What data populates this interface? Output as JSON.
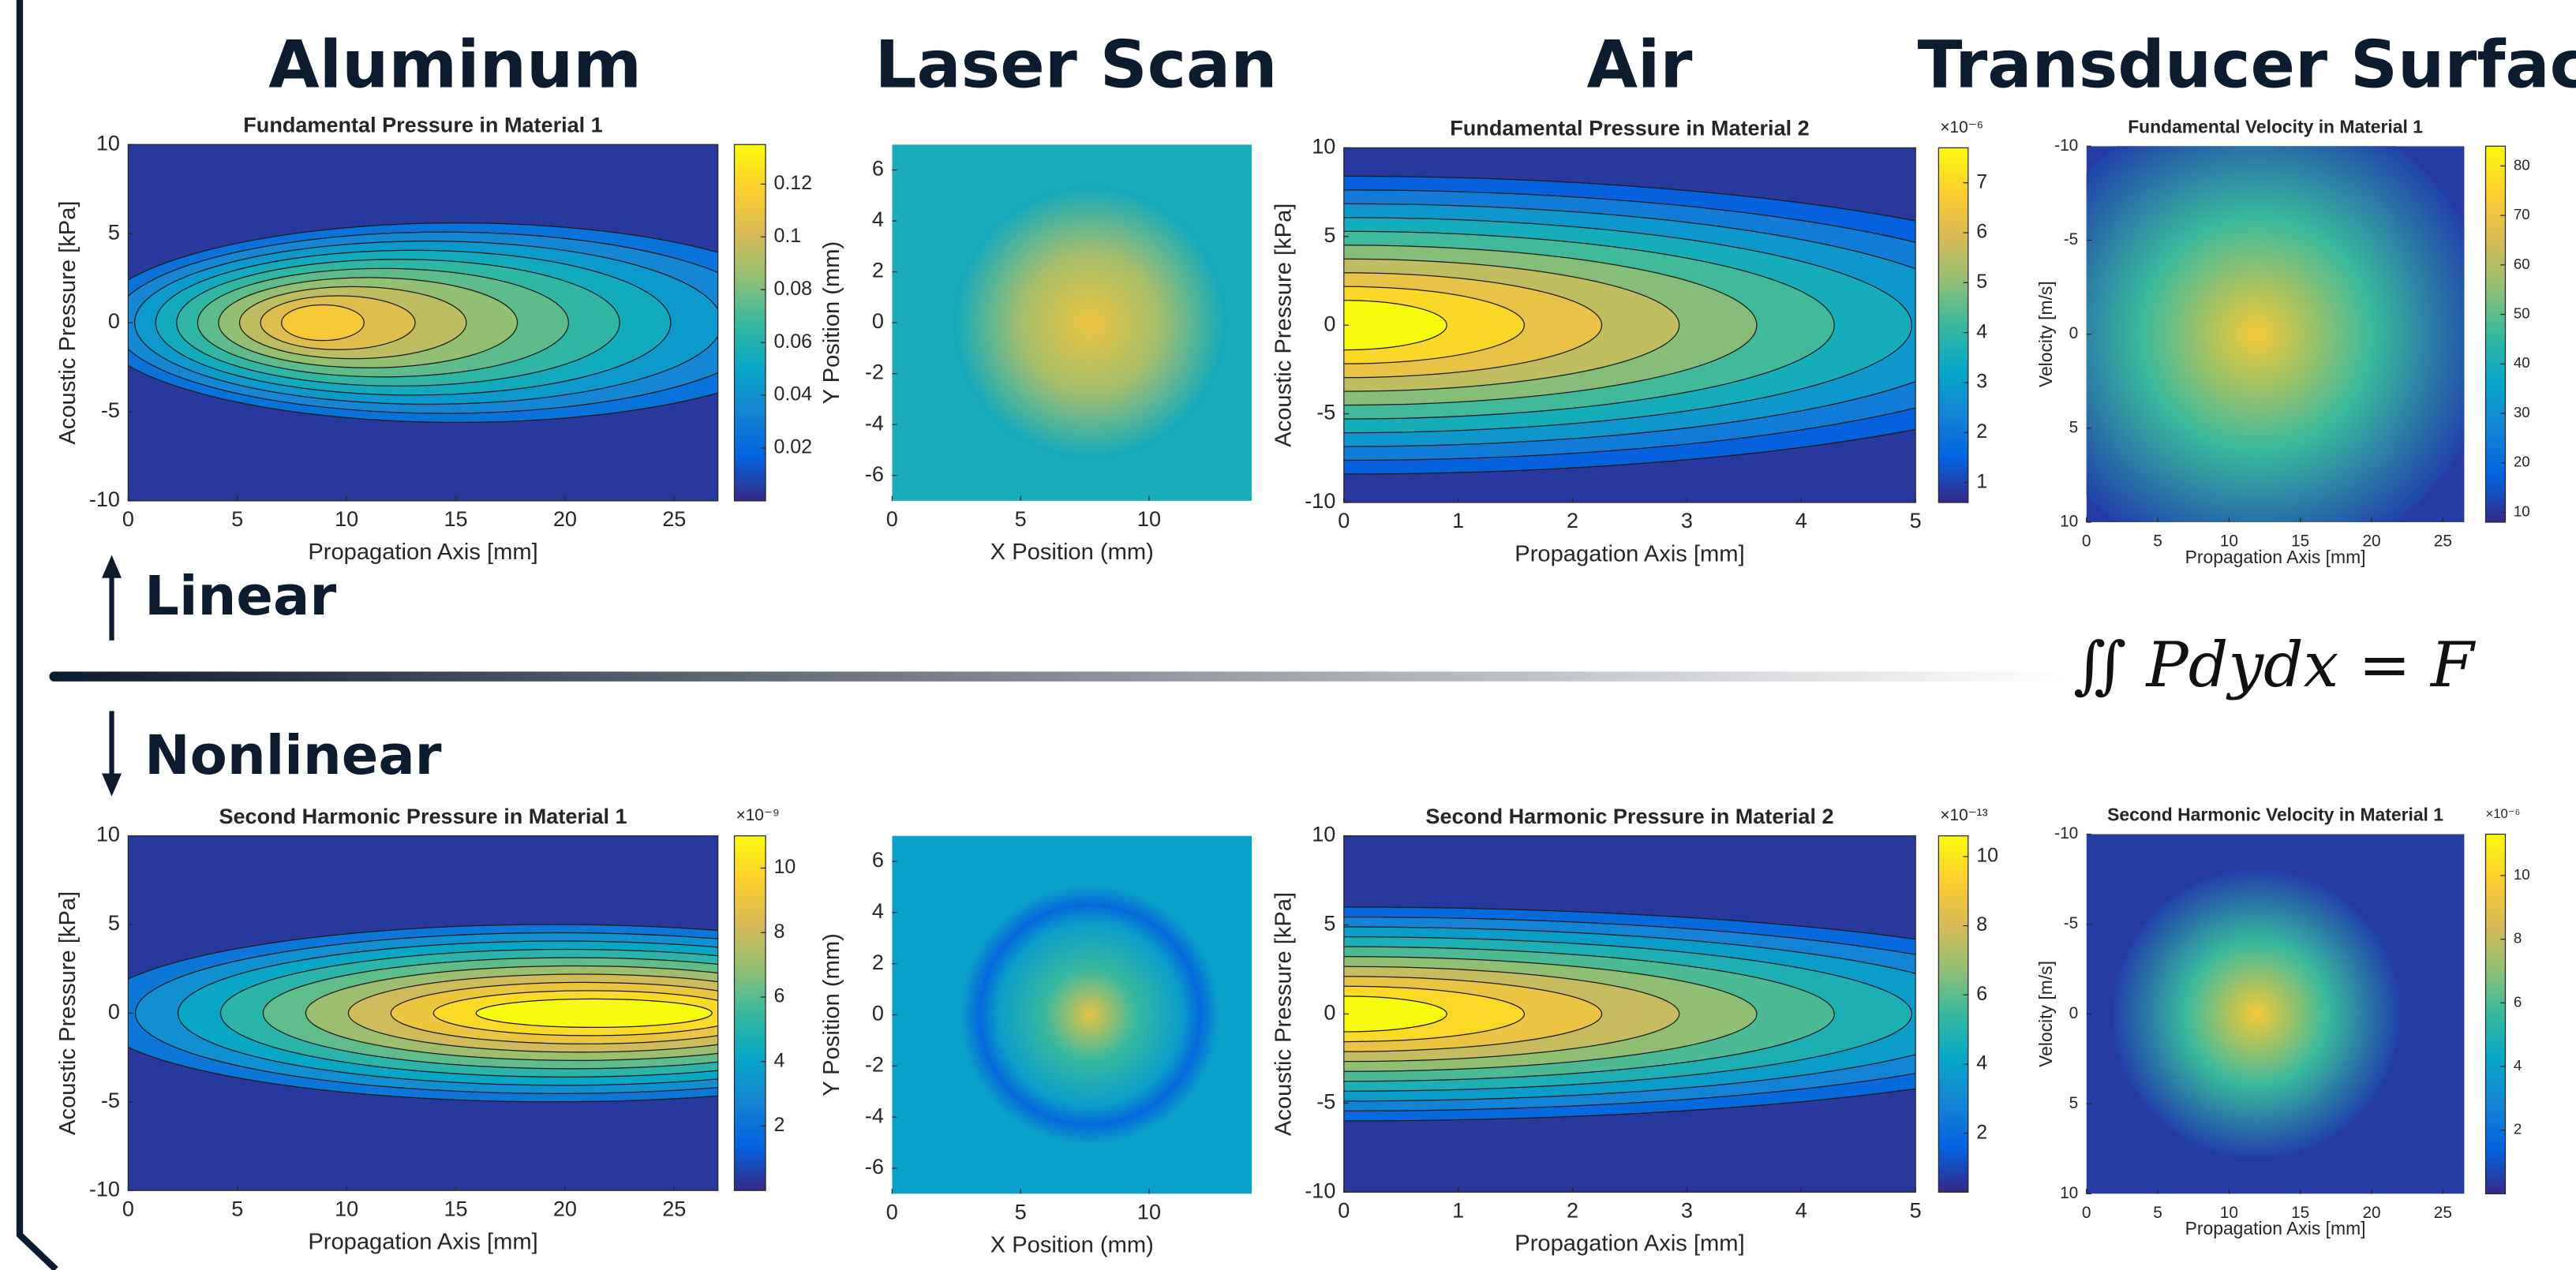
{
  "headers": [
    "Aluminum",
    "Laser Scan",
    "Air",
    "Transducer Surface"
  ],
  "rows": {
    "linear": "Linear",
    "nonlinear": "Nonlinear"
  },
  "equation": "∬ Pdydx = F",
  "chart_data": [
    {
      "type": "contour",
      "title": "Fundamental Pressure in Material 1",
      "xlabel": "Propagation Axis [mm]",
      "ylabel": "Acoustic Pressure [kPa]",
      "xlim": [
        0,
        27
      ],
      "ylim": [
        -10,
        10
      ],
      "xticks": [
        0,
        5,
        10,
        15,
        20,
        25
      ],
      "yticks": [
        -10,
        -5,
        0,
        5,
        10
      ],
      "colorbar": {
        "clim": [
          0,
          0.135
        ],
        "ticks": [
          0.02,
          0.04,
          0.06,
          0.08,
          0.1,
          0.12
        ]
      }
    },
    {
      "type": "heatmap",
      "xlabel": "X Position (mm)",
      "ylabel": "Y Position (mm)",
      "xlim": [
        0,
        14
      ],
      "ylim": [
        -7,
        7
      ],
      "xticks": [
        0,
        5,
        10
      ],
      "yticks": [
        -6,
        -4,
        -2,
        0,
        2,
        4,
        6
      ]
    },
    {
      "type": "contour",
      "title": "Fundamental Pressure in Material 2",
      "xlabel": "Propagation Axis [mm]",
      "ylabel": "Acoustic Pressure [kPa]",
      "xlim": [
        0,
        5
      ],
      "ylim": [
        -10,
        10
      ],
      "xticks": [
        0,
        1,
        2,
        3,
        4,
        5
      ],
      "yticks": [
        -10,
        -5,
        0,
        5,
        10
      ],
      "colorbar": {
        "clim": [
          0.6,
          7.7
        ],
        "ticks": [
          1,
          2,
          3,
          4,
          5,
          6,
          7
        ],
        "exponent": "×10⁻⁶"
      }
    },
    {
      "type": "heatmap",
      "title": "Fundamental Velocity in Material 1",
      "xlabel": "Propagation Axis [mm]",
      "ylabel": "Velocity [m/s]",
      "xlim": [
        0,
        26.5
      ],
      "ylim": [
        -10,
        10
      ],
      "y_reversed": true,
      "xticks": [
        0,
        5,
        10,
        15,
        20,
        25
      ],
      "yticks": [
        -10,
        -5,
        0,
        5,
        10
      ],
      "colorbar": {
        "clim": [
          8,
          84
        ],
        "ticks": [
          10,
          20,
          30,
          40,
          50,
          60,
          70,
          80
        ]
      }
    },
    {
      "type": "contour",
      "title": "Second Harmonic Pressure in Material 1",
      "xlabel": "Propagation Axis [mm]",
      "ylabel": "Acoustic Pressure [kPa]",
      "xlim": [
        0,
        27
      ],
      "ylim": [
        -10,
        10
      ],
      "xticks": [
        0,
        5,
        10,
        15,
        20,
        25
      ],
      "yticks": [
        -10,
        -5,
        0,
        5,
        10
      ],
      "colorbar": {
        "clim": [
          0,
          11
        ],
        "ticks": [
          2,
          4,
          6,
          8,
          10
        ],
        "exponent": "×10⁻⁹"
      }
    },
    {
      "type": "heatmap",
      "xlabel": "X Position (mm)",
      "ylabel": "Y Position (mm)",
      "xlim": [
        0,
        14
      ],
      "ylim": [
        -7,
        7
      ],
      "xticks": [
        0,
        5,
        10
      ],
      "yticks": [
        -6,
        -4,
        -2,
        0,
        2,
        4,
        6
      ]
    },
    {
      "type": "contour",
      "title": "Second Harmonic Pressure in Material 2",
      "xlabel": "Propagation Axis [mm]",
      "ylabel": "Acoustic Pressure [kPa]",
      "xlim": [
        0,
        5
      ],
      "ylim": [
        -10,
        10
      ],
      "xticks": [
        0,
        1,
        2,
        3,
        4,
        5
      ],
      "yticks": [
        -10,
        -5,
        0,
        5,
        10
      ],
      "colorbar": {
        "clim": [
          0.3,
          10.6
        ],
        "ticks": [
          2,
          4,
          6,
          8,
          10
        ],
        "exponent": "×10⁻¹³"
      }
    },
    {
      "type": "heatmap",
      "title": "Second Harmonic Velocity in Material 1",
      "xlabel": "Propagation Axis [mm]",
      "ylabel": "Velocity [m/s]",
      "xlim": [
        0,
        26.5
      ],
      "ylim": [
        -10,
        10
      ],
      "y_reversed": true,
      "xticks": [
        0,
        5,
        10,
        15,
        20,
        25
      ],
      "yticks": [
        -10,
        -5,
        0,
        5,
        10
      ],
      "colorbar": {
        "clim": [
          0,
          11.3
        ],
        "ticks": [
          2,
          4,
          6,
          8,
          10
        ],
        "exponent": "×10⁻⁶"
      }
    }
  ]
}
